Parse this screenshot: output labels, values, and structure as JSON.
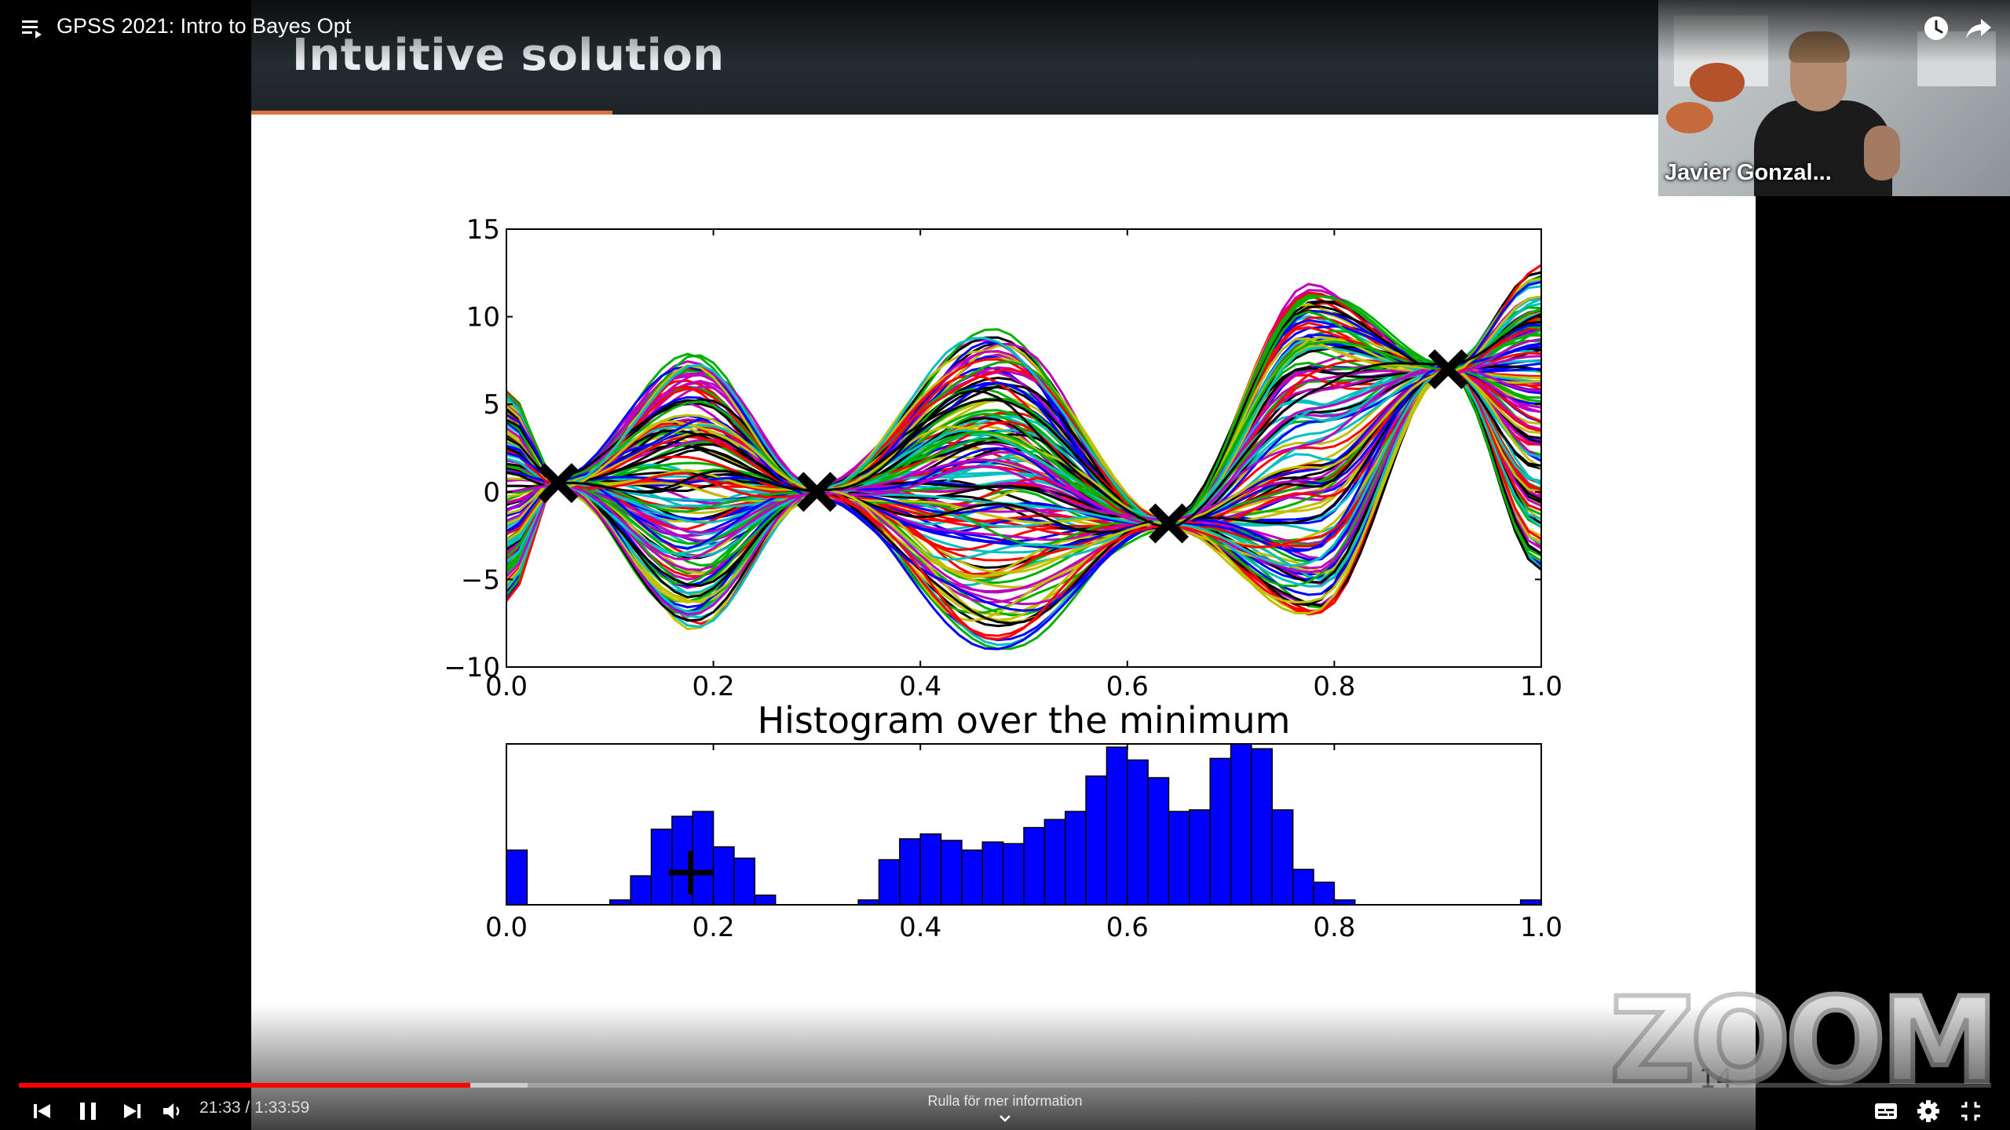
{
  "player": {
    "title": "GPSS 2021: Intro to Bayes Opt",
    "time_current": "21:33",
    "time_total": "1:33:59",
    "time_separator": " / ",
    "progress_fraction": 0.229,
    "buffered_fraction": 0.258,
    "scroll_hint": "Rulla för mer information",
    "icons": {
      "playlist": "playlist-icon",
      "watch_later": "clock-icon",
      "share": "share-arrow-icon",
      "previous": "skip-previous-icon",
      "pause": "pause-icon",
      "next": "skip-next-icon",
      "volume": "volume-icon",
      "subtitles": "subtitles-icon",
      "settings": "gear-icon",
      "exit_fullscreen": "exit-fullscreen-icon",
      "scroll_hint": "chevron-down-icon"
    },
    "colors": {
      "progress": "#ff0000",
      "background": "#000000"
    }
  },
  "speaker": {
    "name": "Javier Gonzal..."
  },
  "slide": {
    "title": "Intuitive solution",
    "page_number": "14",
    "watermark": "ZOOM"
  },
  "chart_data": [
    {
      "type": "line",
      "description_kind": "gp_posterior_samples",
      "xlim": [
        0.0,
        1.0
      ],
      "ylim": [
        -10,
        15
      ],
      "x_ticks": [
        "0.0",
        "0.2",
        "0.4",
        "0.6",
        "0.8",
        "1.0"
      ],
      "y_ticks": [
        "15",
        "10",
        "5",
        "0",
        "−5",
        "−10"
      ],
      "observations": [
        {
          "x": 0.05,
          "y": 0.5
        },
        {
          "x": 0.3,
          "y": 0.0
        },
        {
          "x": 0.64,
          "y": -1.8
        },
        {
          "x": 0.91,
          "y": 7.0
        }
      ]
    },
    {
      "type": "bar",
      "title": "Histogram over the minimum",
      "xlim": [
        0.0,
        1.0
      ],
      "x_ticks": [
        "0.0",
        "0.2",
        "0.4",
        "0.6",
        "0.8",
        "1.0"
      ],
      "bin_width": 0.02,
      "bin_starts": [
        0.0,
        0.1,
        0.12,
        0.14,
        0.16,
        0.18,
        0.2,
        0.22,
        0.24,
        0.34,
        0.36,
        0.38,
        0.4,
        0.42,
        0.44,
        0.46,
        0.48,
        0.5,
        0.52,
        0.54,
        0.56,
        0.58,
        0.6,
        0.62,
        0.64,
        0.66,
        0.68,
        0.7,
        0.72,
        0.74,
        0.76,
        0.78,
        0.8,
        0.98
      ],
      "values": [
        34,
        3,
        18,
        47,
        55,
        58,
        36,
        29,
        6,
        3,
        28,
        41,
        44,
        40,
        34,
        39,
        38,
        48,
        53,
        58,
        80,
        98,
        90,
        79,
        58,
        59,
        91,
        100,
        97,
        59,
        22,
        14,
        3,
        3
      ],
      "color": "#0000ff",
      "marker": {
        "x": 0.178,
        "y": 20,
        "symbol": "+"
      }
    }
  ]
}
